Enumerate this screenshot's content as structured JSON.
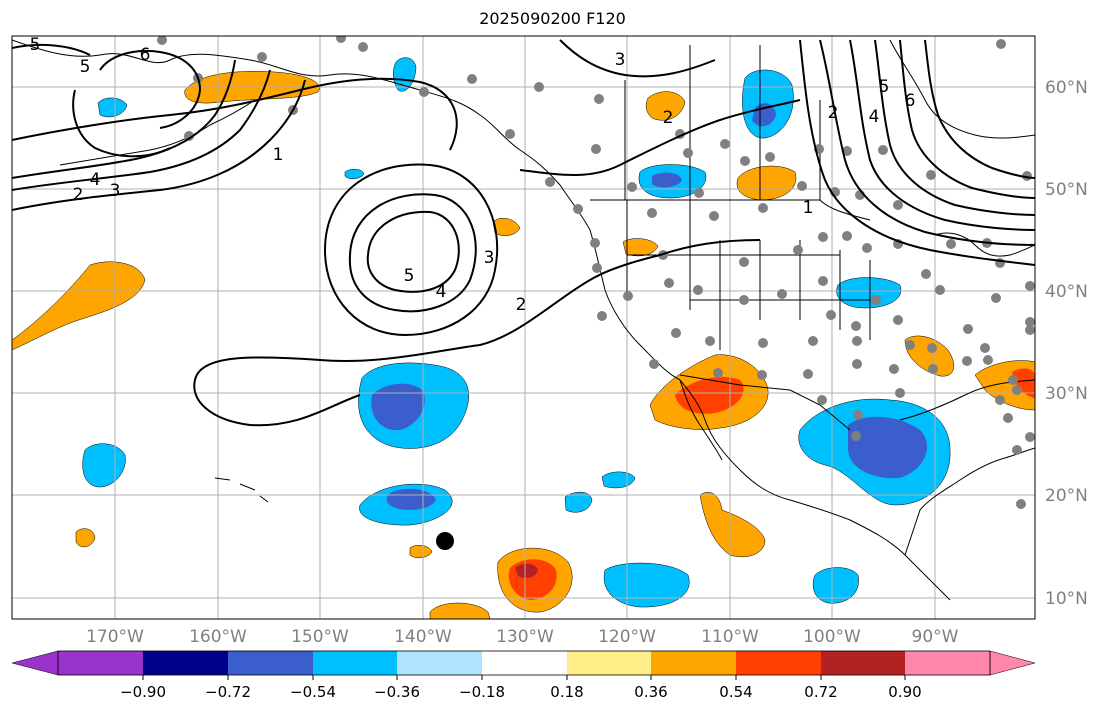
{
  "title": "2025090200 F120",
  "lon_labels": [
    "170°W",
    "160°W",
    "150°W",
    "140°W",
    "130°W",
    "120°W",
    "110°W",
    "100°W",
    "90°W"
  ],
  "lat_labels": [
    "60°N",
    "50°N",
    "40°N",
    "30°N",
    "20°N",
    "10°N"
  ],
  "colorbar": {
    "ticks": [
      "−0.90",
      "−0.72",
      "−0.54",
      "−0.36",
      "−0.18",
      "0.18",
      "0.36",
      "0.54",
      "0.72",
      "0.90"
    ],
    "colors": [
      "#9933cc",
      "#00008b",
      "#3a5fcd",
      "#00bfff",
      "#aee4ff",
      "#ffffff",
      "#ffee88",
      "#ffa500",
      "#ff4000",
      "#b22222",
      "#ff88aa"
    ]
  },
  "contour_labels": [
    {
      "text": "5"
    },
    {
      "text": "4"
    },
    {
      "text": "3"
    },
    {
      "text": "2"
    },
    {
      "text": "1"
    },
    {
      "text": "5"
    },
    {
      "text": "4"
    },
    {
      "text": "3"
    },
    {
      "text": "2"
    },
    {
      "text": "3"
    },
    {
      "text": "2"
    },
    {
      "text": "1"
    },
    {
      "text": "2"
    },
    {
      "text": "4"
    },
    {
      "text": "5"
    },
    {
      "text": "6"
    },
    {
      "text": "5"
    },
    {
      "text": "6"
    }
  ],
  "colors": {
    "land_line": "#000000",
    "grid": "#b0b0b0",
    "station": "#808080",
    "axis_label": "#808080"
  }
}
